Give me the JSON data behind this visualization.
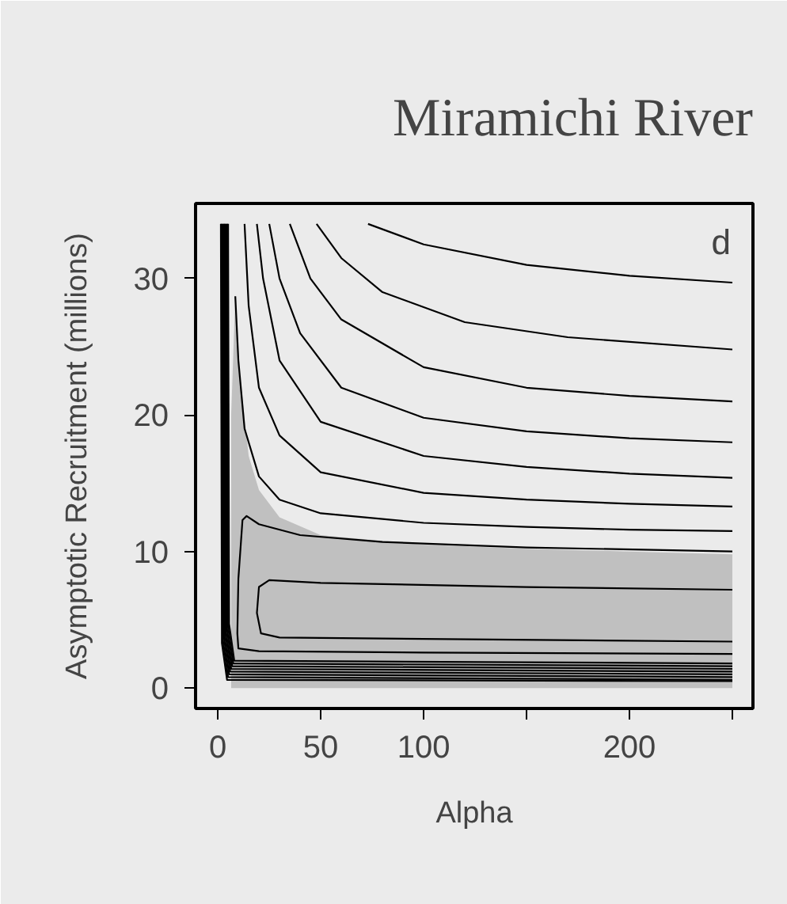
{
  "chart_data": {
    "type": "line",
    "title": "Miramichi River",
    "xlabel": "Alpha",
    "ylabel": "Asymptotic Recruitment (millions)",
    "annotations": [
      "d"
    ],
    "xlim": [
      -10.8,
      260
    ],
    "ylim": [
      -1.5,
      35.5
    ],
    "xticks": [
      0,
      50,
      100,
      {
        "value": 150,
        "label": null
      },
      200,
      {
        "value": 250,
        "label": null
      }
    ],
    "yticks": [
      0,
      10,
      20,
      30
    ],
    "grid": false,
    "marker": "none",
    "line_style": "solid",
    "series": [
      {
        "type": "area",
        "color": "#c0c0c0",
        "x": [
          6.5,
          8.5,
          10,
          15,
          20,
          30,
          50,
          100,
          150,
          200,
          250
        ],
        "values": [
          20,
          28.7,
          24,
          17,
          14.5,
          12.5,
          11.2,
          10.5,
          10.2,
          10,
          9.8
        ]
      },
      {
        "color": "#000000",
        "x": [
          73,
          100,
          150,
          200,
          250
        ],
        "values": [
          34,
          32.5,
          31,
          30.2,
          29.7
        ]
      },
      {
        "color": "#000000",
        "x": [
          48,
          60,
          80,
          120,
          170,
          250
        ],
        "values": [
          34,
          31.5,
          29,
          26.8,
          25.7,
          24.8
        ]
      },
      {
        "color": "#000000",
        "x": [
          35,
          45,
          60,
          100,
          150,
          200,
          250
        ],
        "values": [
          34,
          30,
          27,
          23.5,
          22,
          21.4,
          21.0
        ]
      },
      {
        "color": "#000000",
        "x": [
          25,
          30,
          40,
          60,
          100,
          150,
          200,
          250
        ],
        "values": [
          34,
          30,
          26,
          22,
          19.8,
          18.8,
          18.3,
          18.0
        ]
      },
      {
        "color": "#000000",
        "x": [
          19,
          22,
          30,
          50,
          100,
          150,
          200,
          250
        ],
        "values": [
          34,
          30,
          24,
          19.5,
          17,
          16.2,
          15.7,
          15.4
        ]
      },
      {
        "color": "#000000",
        "x": [
          13,
          15,
          20,
          30,
          50,
          100,
          150,
          200,
          250
        ],
        "values": [
          34,
          28,
          22,
          18.5,
          15.8,
          14.3,
          13.8,
          13.5,
          13.3
        ]
      },
      {
        "color": "#000000",
        "x": [
          8.5,
          10,
          13,
          20,
          30,
          50,
          100,
          150,
          200,
          250
        ],
        "values": [
          28.7,
          24,
          19,
          15.5,
          13.8,
          12.8,
          12.1,
          11.8,
          11.6,
          11.5
        ]
      },
      {
        "color": "#000000",
        "x": [
          250,
          150,
          80,
          40,
          20,
          14,
          12,
          10,
          9.5,
          10,
          20,
          100,
          250
        ],
        "values": [
          10.0,
          10.3,
          10.7,
          11.2,
          12,
          12.6,
          12.3,
          8,
          4,
          2.9,
          2.7,
          2.6,
          2.5
        ]
      },
      {
        "color": "#000000",
        "x": [
          250,
          150,
          50,
          25,
          20,
          19,
          21,
          30,
          100,
          250
        ],
        "values": [
          7.2,
          7.4,
          7.7,
          7.9,
          7.4,
          5.5,
          4.0,
          3.7,
          3.6,
          3.4
        ]
      },
      {
        "color": "#000000",
        "x": [
          5,
          5.5,
          8,
          250
        ],
        "values": [
          34,
          4.7,
          2.0,
          1.8
        ]
      },
      {
        "color": "#000000",
        "x": [
          4.5,
          5,
          7.5,
          250
        ],
        "values": [
          34,
          4.5,
          1.8,
          1.6
        ]
      },
      {
        "color": "#000000",
        "x": [
          4,
          4.5,
          7,
          250
        ],
        "values": [
          34,
          4.3,
          1.6,
          1.4
        ]
      },
      {
        "color": "#000000",
        "x": [
          3.5,
          4,
          6.5,
          250
        ],
        "values": [
          34,
          4.1,
          1.4,
          1.2
        ]
      },
      {
        "color": "#000000",
        "x": [
          3,
          3.5,
          6,
          250
        ],
        "values": [
          34,
          3.9,
          1.2,
          1.0
        ]
      },
      {
        "color": "#000000",
        "x": [
          2.5,
          3,
          5.5,
          250
        ],
        "values": [
          34,
          3.7,
          1.0,
          0.8
        ]
      },
      {
        "color": "#000000",
        "x": [
          2,
          2.5,
          5,
          250
        ],
        "values": [
          34,
          3.5,
          0.8,
          0.6
        ]
      },
      {
        "color": "#000000",
        "x": [
          1.5,
          2,
          4.5,
          250
        ],
        "values": [
          34,
          3.3,
          0.6,
          0.5
        ]
      }
    ]
  }
}
